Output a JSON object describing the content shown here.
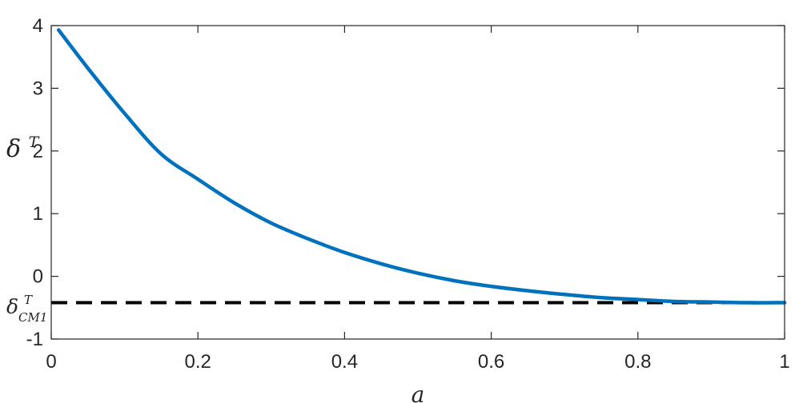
{
  "chart_data": {
    "type": "line",
    "xlabel": "a",
    "ylabel": {
      "base": "δ",
      "sup": "T"
    },
    "xlim": [
      0,
      1
    ],
    "ylim": [
      -1,
      4
    ],
    "x_ticks": [
      "0",
      "0.2",
      "0.4",
      "0.6",
      "0.8",
      "1"
    ],
    "y_ticks": [
      "-1",
      "0",
      "1",
      "2",
      "3",
      "4"
    ],
    "grid": false,
    "legend": "none",
    "series": [
      {
        "color": "#0072BD",
        "style": "solid",
        "x": [
          0.01,
          0.05,
          0.1,
          0.15,
          0.2,
          0.25,
          0.3,
          0.35,
          0.4,
          0.45,
          0.5,
          0.55,
          0.6,
          0.65,
          0.7,
          0.75,
          0.8,
          0.85,
          0.9,
          0.95,
          1.0
        ],
        "y": [
          3.93,
          3.32,
          2.6,
          1.95,
          1.55,
          1.17,
          0.85,
          0.6,
          0.38,
          0.2,
          0.05,
          -0.07,
          -0.16,
          -0.23,
          -0.29,
          -0.34,
          -0.37,
          -0.4,
          -0.41,
          -0.42,
          -0.42
        ]
      }
    ],
    "reference_line": {
      "y": -0.42,
      "color": "#000000",
      "style": "dashed",
      "label": {
        "base": "δ",
        "sup": "T",
        "sub": "CM1"
      }
    }
  }
}
